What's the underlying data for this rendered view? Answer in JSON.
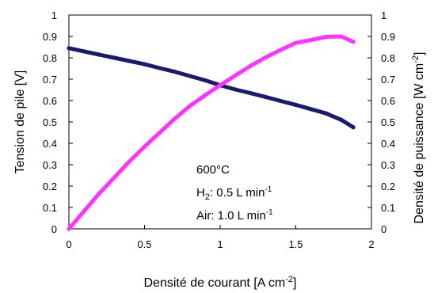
{
  "chart_data": {
    "type": "line",
    "xlabel": "Densité de courant [A cm",
    "xlabel_sup": "-2",
    "xlabel_end": "]",
    "ylabel": "Tension de pile [V]",
    "y2label": "Densité de puissance [W cm",
    "y2label_sup": "-2",
    "y2label_end": "]",
    "xlim": [
      0,
      2
    ],
    "ylim": [
      0,
      1
    ],
    "y2lim": [
      0,
      1
    ],
    "x_ticks": [
      "0",
      "0.5",
      "1",
      "1.5",
      "2"
    ],
    "y_ticks": [
      "0",
      "0.1",
      "0.2",
      "0.3",
      "0.4",
      "0.5",
      "0.6",
      "0.7",
      "0.8",
      "0.9",
      "1"
    ],
    "y2_ticks": [
      "0",
      "0.1",
      "0.2",
      "0.3",
      "0.4",
      "0.5",
      "0.6",
      "0.7",
      "0.8",
      "0.9",
      "1"
    ],
    "grid": false,
    "annotations": {
      "temperature": "600°C",
      "h2_prefix": "H",
      "h2_sub": "2",
      "h2_text": ": 0.5 L min",
      "h2_sup": "-1",
      "air_text": "Air: 1.0 L min",
      "air_sup": "-1"
    },
    "series": [
      {
        "color": "#1a1a6e",
        "axis": "left",
        "x": [
          0,
          0.1,
          0.2,
          0.3,
          0.4,
          0.5,
          0.6,
          0.7,
          0.8,
          0.9,
          1.0,
          1.1,
          1.2,
          1.3,
          1.4,
          1.5,
          1.6,
          1.7,
          1.8,
          1.88
        ],
        "values": [
          0.845,
          0.83,
          0.815,
          0.8,
          0.785,
          0.77,
          0.752,
          0.735,
          0.715,
          0.695,
          0.672,
          0.652,
          0.635,
          0.617,
          0.598,
          0.58,
          0.56,
          0.54,
          0.51,
          0.475
        ]
      },
      {
        "color": "#ff33ff",
        "axis": "right",
        "x": [
          0,
          0.1,
          0.2,
          0.3,
          0.4,
          0.5,
          0.6,
          0.7,
          0.8,
          0.9,
          1.0,
          1.1,
          1.2,
          1.3,
          1.4,
          1.5,
          1.6,
          1.7,
          1.8,
          1.88
        ],
        "values": [
          0.0,
          0.083,
          0.165,
          0.24,
          0.315,
          0.385,
          0.45,
          0.515,
          0.575,
          0.625,
          0.672,
          0.717,
          0.762,
          0.802,
          0.837,
          0.87,
          0.883,
          0.898,
          0.9,
          0.875
        ]
      }
    ]
  }
}
